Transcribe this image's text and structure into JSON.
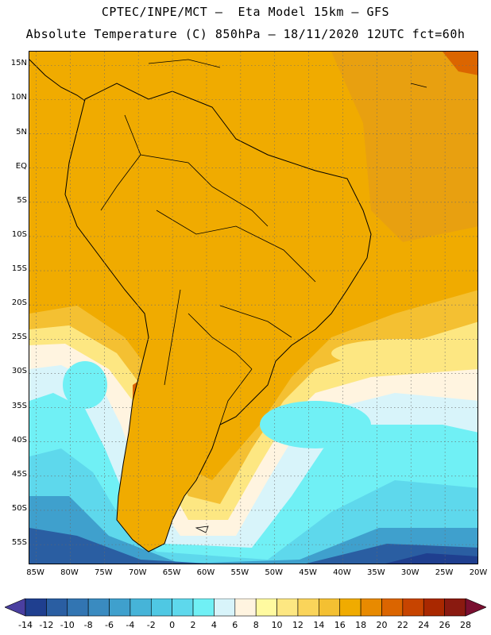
{
  "header": {
    "title_line1": "CPTEC/INPE/MCT –  Eta Model 15km – GFS",
    "title_line2": "Absolute Temperature (C) 850hPa – 18/11/2020 12UTC fct=60h"
  },
  "map": {
    "lat_ticks": [
      "15N",
      "10N",
      "5N",
      "EQ",
      "5S",
      "10S",
      "15S",
      "20S",
      "25S",
      "30S",
      "35S",
      "40S",
      "45S",
      "50S",
      "55S"
    ],
    "lon_ticks": [
      "85W",
      "80W",
      "75W",
      "70W",
      "65W",
      "60W",
      "55W",
      "50W",
      "45W",
      "40W",
      "35W",
      "30W",
      "25W",
      "20W"
    ],
    "lat_range": [
      17,
      -58
    ],
    "lon_range": [
      -86,
      -20
    ]
  },
  "legend": {
    "labels": [
      "-14",
      "-12",
      "-10",
      "-8",
      "-6",
      "-4",
      "-2",
      "0",
      "2",
      "4",
      "6",
      "8",
      "10",
      "12",
      "14",
      "16",
      "18",
      "20",
      "22",
      "24",
      "26",
      "28"
    ],
    "colors": {
      "under": "#4a3fa0",
      "over": "#7a0f30",
      "bins": [
        "#1f3f8f",
        "#2a5ea2",
        "#3275b2",
        "#3a8bc0",
        "#3fa0cd",
        "#46b4d8",
        "#4fc8e3",
        "#5ed8ec",
        "#70f0f5",
        "#d8f4fa",
        "#fff4e0",
        "#fffaa0",
        "#fde782",
        "#fad45a",
        "#f4c032",
        "#f0ab00",
        "#e88a00",
        "#db6500",
        "#c74400",
        "#a92800",
        "#8a1a10"
      ]
    }
  },
  "palette": {
    "land_base": "#f0ab00",
    "warm": "#e88a00",
    "hot": "#db6500",
    "ocean_mid": "#f4c032",
    "pale": "#fde782",
    "cream": "#fff4e0",
    "cyan": "#70f0f5",
    "cold": "#3fa0cd",
    "deep_cold": "#1f3f8f",
    "coast": "#000000"
  }
}
